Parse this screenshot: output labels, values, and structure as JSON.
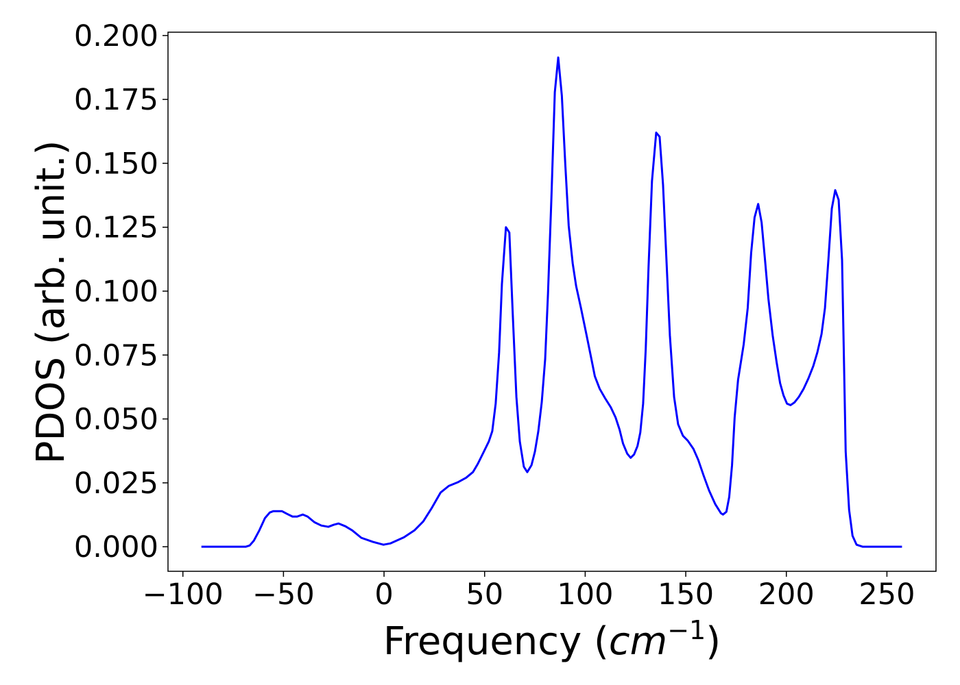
{
  "chart_data": {
    "type": "line",
    "xlabel": [
      "Frequency (",
      "cm",
      "−1",
      ")"
    ],
    "ylabel": "PDOS (arb. unit.)",
    "xlim": [
      -107.4,
      274.4
    ],
    "ylim": [
      -0.0096,
      0.2013
    ],
    "xticks": [
      {
        "value": -100,
        "label": "−100"
      },
      {
        "value": -50,
        "label": "−50"
      },
      0,
      50,
      100,
      150,
      200,
      250
    ],
    "yticks": [
      {
        "value": 0,
        "label": "0.000"
      },
      {
        "value": 0.025,
        "label": "0.025"
      },
      {
        "value": 0.05,
        "label": "0.050"
      },
      {
        "value": 0.075,
        "label": "0.075"
      },
      {
        "value": 0.1,
        "label": "0.100"
      },
      {
        "value": 0.125,
        "label": "0.125"
      },
      {
        "value": 0.15,
        "label": "0.150"
      },
      {
        "value": 0.175,
        "label": "0.175"
      },
      {
        "value": 0.2,
        "label": "0.200"
      }
    ],
    "grid": false,
    "series": [
      {
        "color": "#0000ff",
        "x": [
          -90.8,
          -68.8,
          -66.8,
          -64.7,
          -62,
          -59.2,
          -56.8,
          -55.1,
          -50.7,
          -48.3,
          -45.5,
          -43.2,
          -40.4,
          -38,
          -34.6,
          -31.2,
          -27.7,
          -25,
          -22.6,
          -19.2,
          -15.8,
          -11.3,
          -5.5,
          -0.3,
          3.1,
          9.9,
          15.1,
          19.5,
          23.6,
          28.1,
          32.2,
          36.6,
          40.8,
          44.2,
          46.6,
          49.3,
          52.1,
          53.8,
          55.5,
          57.2,
          58.6,
          60.6,
          62.3,
          64,
          65.8,
          67.5,
          69.5,
          71.2,
          73.3,
          75,
          76.7,
          78.4,
          80.1,
          81.5,
          83.2,
          84.9,
          86.6,
          88.4,
          90.1,
          91.8,
          93.8,
          95.5,
          97.9,
          100.7,
          103.1,
          104.8,
          107.2,
          109.9,
          112.7,
          115.1,
          117.1,
          118.8,
          120.9,
          122.6,
          124.3,
          126,
          127.4,
          128.8,
          130.1,
          131.5,
          133.2,
          135.3,
          137,
          138.7,
          140.4,
          142.1,
          144.2,
          146.2,
          148.6,
          151,
          153.8,
          156.2,
          158.9,
          161.6,
          164.7,
          167.5,
          168.5,
          170.2,
          171.6,
          173,
          174.3,
          176,
          178.8,
          180.8,
          182.5,
          184.2,
          186,
          187.7,
          189.4,
          191.1,
          193.2,
          195.2,
          196.9,
          198.6,
          200.3,
          202.1,
          204.1,
          206.2,
          208.6,
          211,
          213.4,
          215.4,
          217.5,
          219.2,
          220.9,
          222.6,
          224.3,
          226,
          227.7,
          229.5,
          231.2,
          232.9,
          234.9,
          238,
          257.5
        ],
        "values": [
          0,
          0,
          0.0005,
          0.0024,
          0.0064,
          0.0112,
          0.0134,
          0.0139,
          0.0139,
          0.0129,
          0.0118,
          0.0118,
          0.0126,
          0.0118,
          0.0096,
          0.0083,
          0.0078,
          0.0086,
          0.0091,
          0.008,
          0.0064,
          0.0035,
          0.0019,
          0.0008,
          0.0013,
          0.0037,
          0.0064,
          0.0099,
          0.015,
          0.0212,
          0.0238,
          0.0252,
          0.027,
          0.0292,
          0.0324,
          0.0367,
          0.0412,
          0.0452,
          0.056,
          0.076,
          0.1028,
          0.125,
          0.1229,
          0.0908,
          0.0586,
          0.0412,
          0.0313,
          0.0292,
          0.0319,
          0.0372,
          0.0452,
          0.0565,
          0.0734,
          0.0988,
          0.1363,
          0.1778,
          0.1914,
          0.1764,
          0.1497,
          0.1256,
          0.1108,
          0.102,
          0.0934,
          0.0827,
          0.0734,
          0.0667,
          0.0618,
          0.0581,
          0.0546,
          0.0506,
          0.0458,
          0.0404,
          0.0364,
          0.0348,
          0.0361,
          0.0394,
          0.0447,
          0.056,
          0.0774,
          0.1095,
          0.143,
          0.162,
          0.1604,
          0.1416,
          0.1122,
          0.0827,
          0.0586,
          0.0479,
          0.0434,
          0.0415,
          0.0383,
          0.034,
          0.0278,
          0.022,
          0.0166,
          0.0131,
          0.0126,
          0.0137,
          0.0195,
          0.0319,
          0.0506,
          0.0653,
          0.0792,
          0.0934,
          0.1149,
          0.1288,
          0.1341,
          0.1269,
          0.1122,
          0.0969,
          0.0827,
          0.072,
          0.064,
          0.0592,
          0.056,
          0.0554,
          0.0565,
          0.0586,
          0.0618,
          0.0659,
          0.0707,
          0.076,
          0.0832,
          0.0934,
          0.1122,
          0.1323,
          0.1395,
          0.1357,
          0.1122,
          0.0372,
          0.0145,
          0.0043,
          0.0008,
          0,
          0
        ]
      }
    ]
  }
}
